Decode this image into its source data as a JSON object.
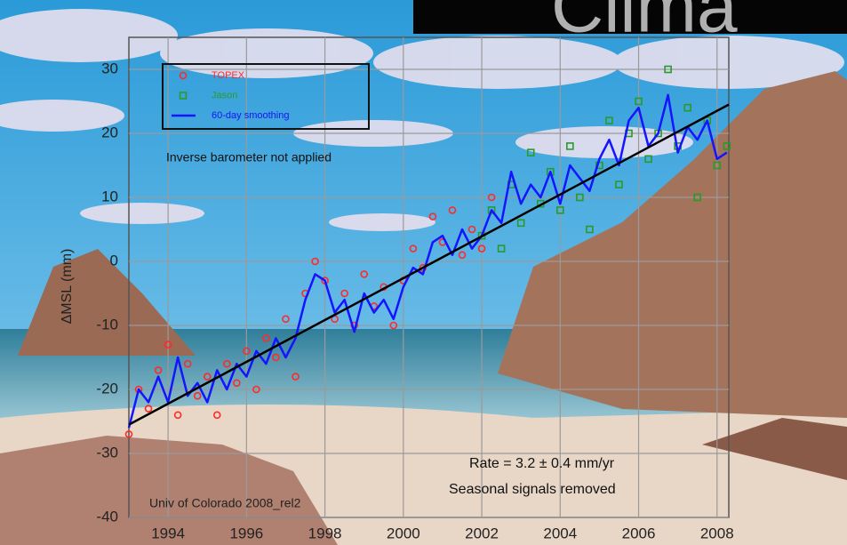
{
  "chart_data": {
    "type": "scatter",
    "title": "Clima",
    "ylabel": "ΔMSL (mm)",
    "annotations": [
      "Inverse barometer not applied",
      "Rate = 3.2 ± 0.4 mm/yr",
      "Seasonal signals removed",
      "Univ of Colorado 2008_rel2"
    ],
    "xlim": [
      1993,
      2008.3
    ],
    "ylim": [
      -40,
      35
    ],
    "xticks": [
      1994,
      1996,
      1998,
      2000,
      2002,
      2004,
      2006,
      2008
    ],
    "yticks": [
      30,
      20,
      10,
      0,
      -10,
      -20,
      -30,
      -40
    ],
    "grid": true,
    "legend": "upper left",
    "series": [
      {
        "name": "TOPEX",
        "color": "#ff2a2a",
        "marker": "circle",
        "x": [
          1993.0,
          1993.25,
          1993.5,
          1993.75,
          1994.0,
          1994.25,
          1994.5,
          1994.75,
          1995.0,
          1995.25,
          1995.5,
          1995.75,
          1996.0,
          1996.25,
          1996.5,
          1996.75,
          1997.0,
          1997.25,
          1997.5,
          1997.75,
          1998.0,
          1998.25,
          1998.5,
          1998.75,
          1999.0,
          1999.25,
          1999.5,
          1999.75,
          2000.0,
          2000.25,
          2000.5,
          2000.75,
          2001.0,
          2001.25,
          2001.5,
          2001.75,
          2002.0,
          2002.25
        ],
        "values": [
          -27,
          -20,
          -23,
          -17,
          -13,
          -24,
          -16,
          -21,
          -18,
          -24,
          -16,
          -19,
          -14,
          -20,
          -12,
          -15,
          -9,
          -18,
          -5,
          0,
          -3,
          -9,
          -5,
          -10,
          -2,
          -7,
          -4,
          -10,
          -3,
          2,
          -1,
          7,
          3,
          8,
          1,
          5,
          2,
          10
        ]
      },
      {
        "name": "Jason",
        "color": "#2a9a2a",
        "marker": "square",
        "x": [
          2002.0,
          2002.25,
          2002.5,
          2002.75,
          2003.0,
          2003.25,
          2003.5,
          2003.75,
          2004.0,
          2004.25,
          2004.5,
          2004.75,
          2005.0,
          2005.25,
          2005.5,
          2005.75,
          2006.0,
          2006.25,
          2006.5,
          2006.75,
          2007.0,
          2007.25,
          2007.5,
          2007.75,
          2008.0,
          2008.25
        ],
        "values": [
          4,
          8,
          2,
          12,
          6,
          17,
          9,
          14,
          8,
          18,
          10,
          5,
          15,
          22,
          12,
          20,
          25,
          16,
          20,
          30,
          18,
          24,
          10,
          22,
          15,
          18
        ]
      },
      {
        "name": "60-day smoothing",
        "color": "#1414ff",
        "marker": "line",
        "x": [
          1993.0,
          1993.25,
          1993.5,
          1993.75,
          1994.0,
          1994.25,
          1994.5,
          1994.75,
          1995.0,
          1995.25,
          1995.5,
          1995.75,
          1996.0,
          1996.25,
          1996.5,
          1996.75,
          1997.0,
          1997.25,
          1997.5,
          1997.75,
          1998.0,
          1998.25,
          1998.5,
          1998.75,
          1999.0,
          1999.25,
          1999.5,
          1999.75,
          2000.0,
          2000.25,
          2000.5,
          2000.75,
          2001.0,
          2001.25,
          2001.5,
          2001.75,
          2002.0,
          2002.25,
          2002.5,
          2002.75,
          2003.0,
          2003.25,
          2003.5,
          2003.75,
          2004.0,
          2004.25,
          2004.5,
          2004.75,
          2005.0,
          2005.25,
          2005.5,
          2005.75,
          2006.0,
          2006.25,
          2006.5,
          2006.75,
          2007.0,
          2007.25,
          2007.5,
          2007.75,
          2008.0,
          2008.25
        ],
        "values": [
          -26,
          -20,
          -22,
          -18,
          -22,
          -15,
          -21,
          -19,
          -22,
          -17,
          -20,
          -16,
          -18,
          -14,
          -16,
          -12,
          -15,
          -12,
          -6,
          -2,
          -3,
          -8,
          -6,
          -11,
          -5,
          -8,
          -6,
          -9,
          -4,
          -1,
          -2,
          3,
          4,
          1,
          5,
          2,
          4,
          8,
          6,
          14,
          9,
          12,
          10,
          14,
          9,
          15,
          13,
          11,
          16,
          19,
          15,
          22,
          24,
          18,
          20,
          26,
          17,
          21,
          19,
          22,
          16,
          17
        ]
      }
    ],
    "trend": {
      "color": "#000000",
      "x": [
        1993,
        2008.3
      ],
      "values": [
        -25.5,
        24.5
      ]
    }
  }
}
